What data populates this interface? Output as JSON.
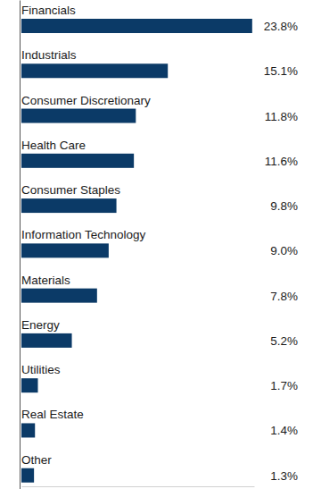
{
  "chart_data": {
    "type": "bar",
    "orientation": "horizontal",
    "categories": [
      "Financials",
      "Industrials",
      "Consumer Discretionary",
      "Health Care",
      "Consumer Staples",
      "Information Technology",
      "Materials",
      "Energy",
      "Utilities",
      "Real Estate",
      "Other"
    ],
    "values": [
      23.8,
      15.1,
      11.8,
      11.6,
      9.8,
      9.0,
      7.8,
      5.2,
      1.7,
      1.4,
      1.3
    ],
    "value_labels": [
      "23.8%",
      "15.1%",
      "11.8%",
      "11.6%",
      "9.8%",
      "9.0%",
      "7.8%",
      "5.2%",
      "1.7%",
      "1.4%",
      "1.3%"
    ],
    "color": "#0b3a67",
    "xlim": [
      0,
      24
    ],
    "xticks": [],
    "data_labels": true,
    "tick_labels": false,
    "grid": false
  }
}
